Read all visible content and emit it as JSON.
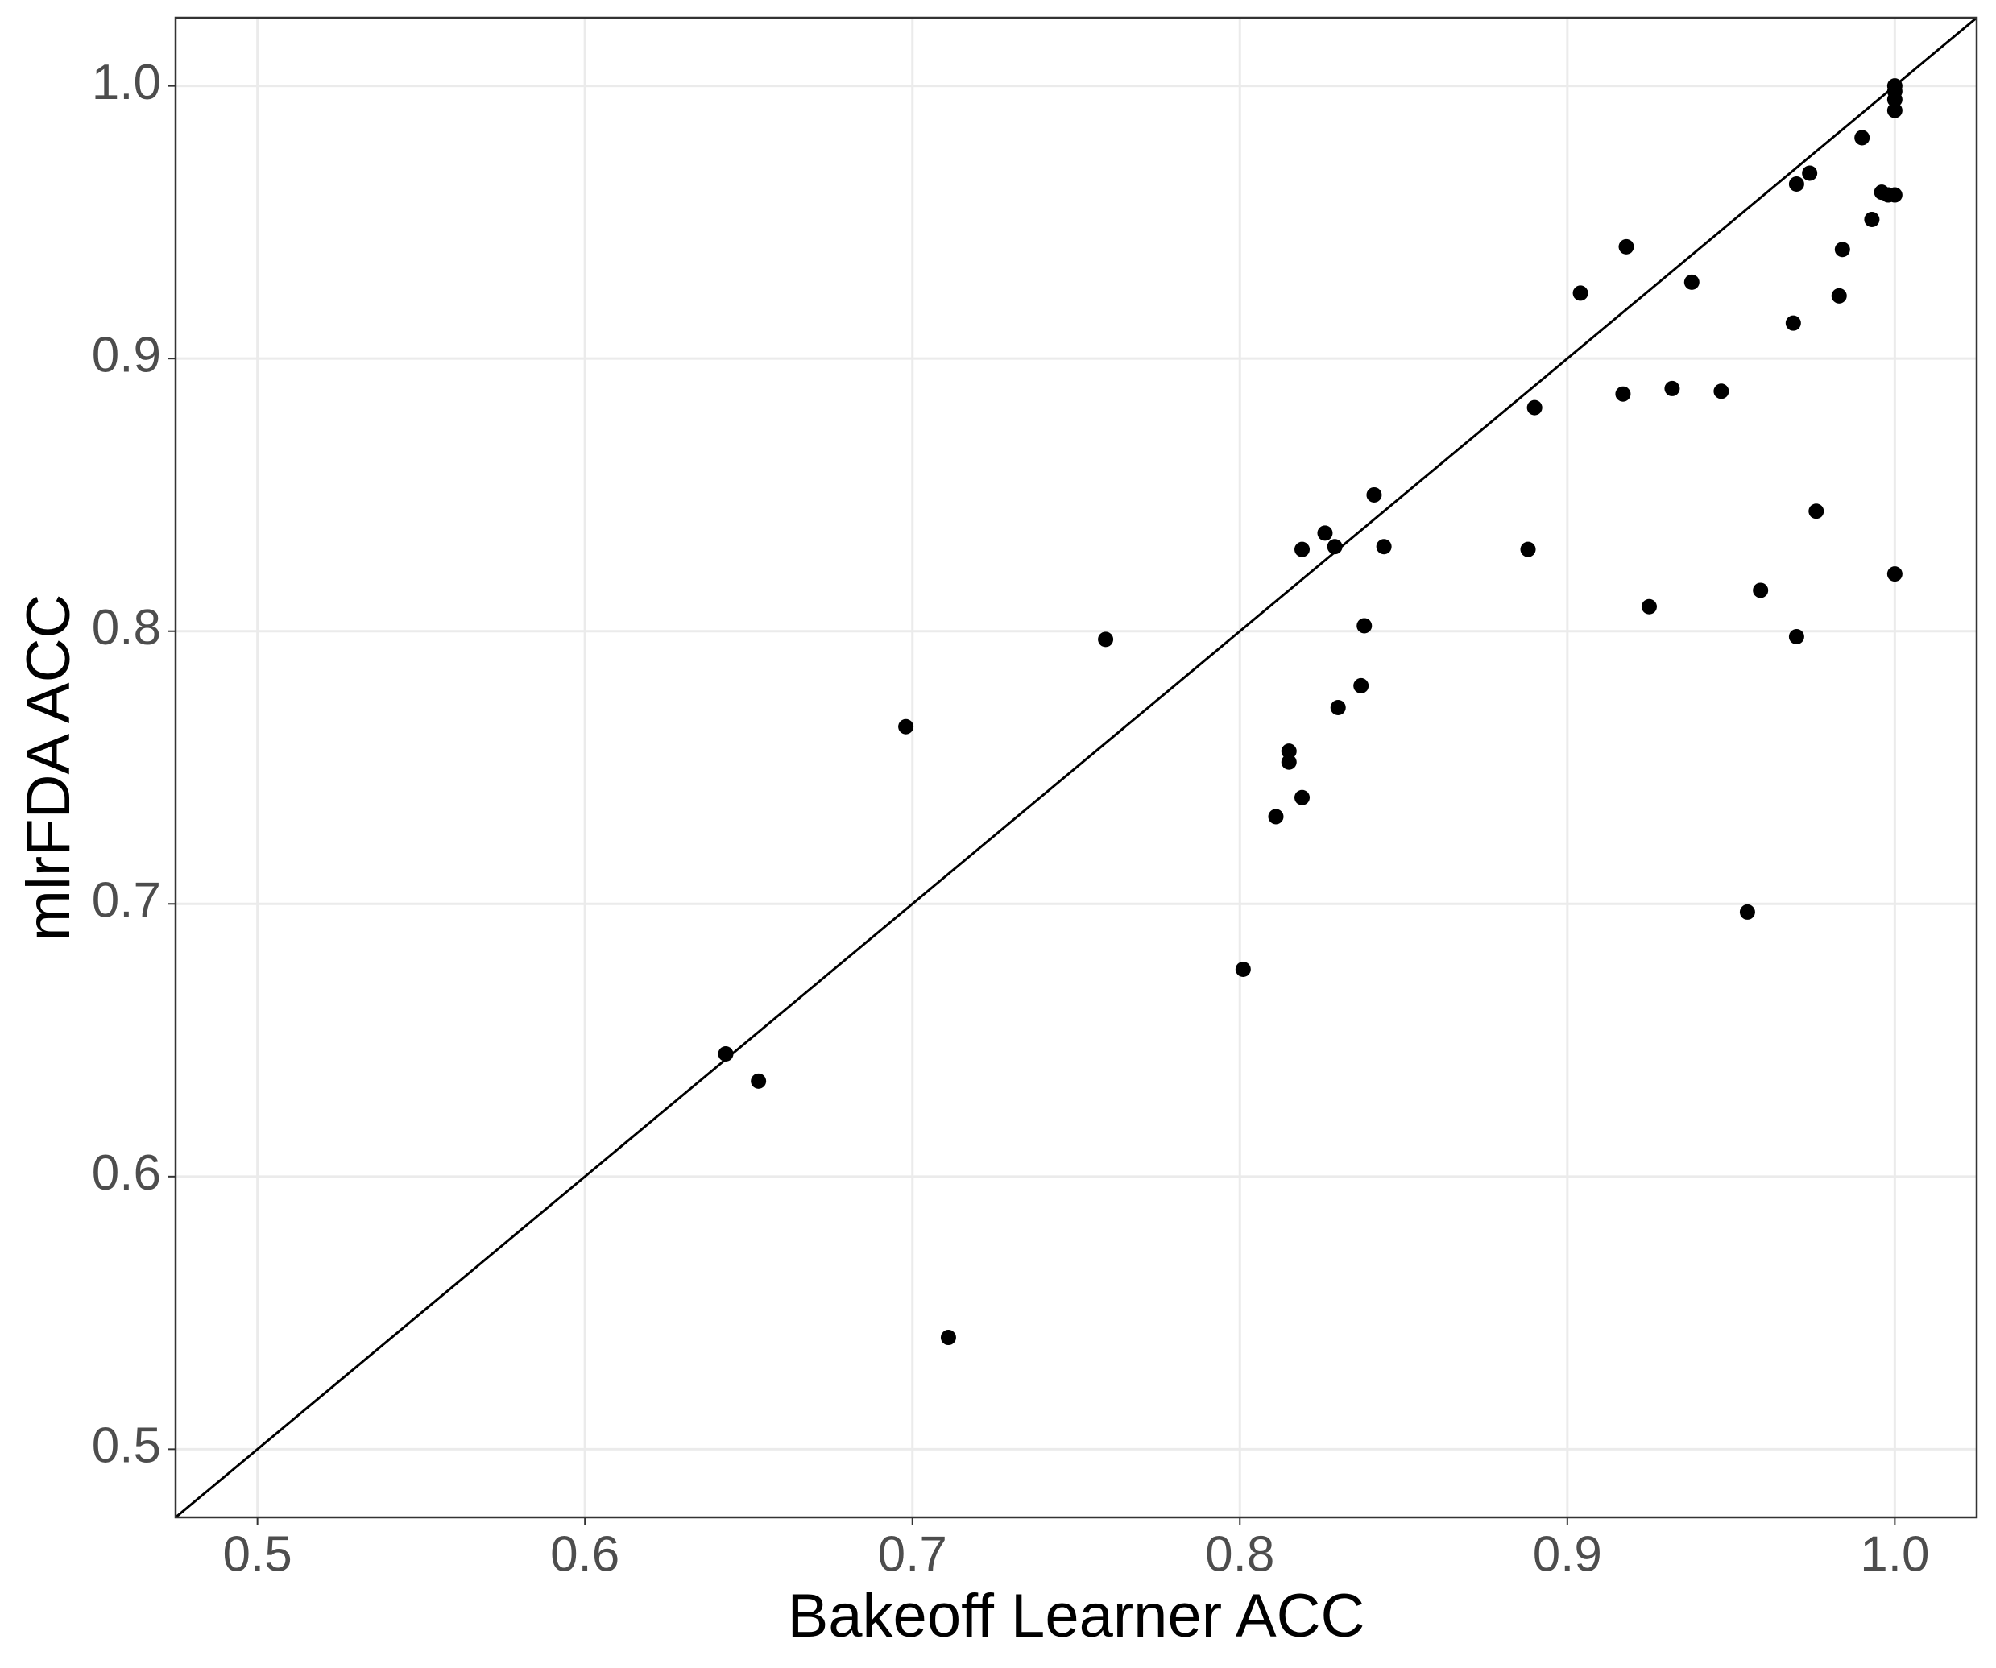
{
  "chart_data": {
    "type": "scatter",
    "x_label": "Bakeoff Learner ACC",
    "y_label": "mlrFDA ACC",
    "x": [
      1.0,
      1.0,
      1.0,
      1.0,
      0.99,
      0.974,
      0.97,
      0.996,
      0.998,
      1.0,
      0.993,
      0.918,
      0.984,
      0.938,
      0.904,
      0.983,
      0.969,
      0.89,
      0.917,
      0.932,
      0.947,
      0.841,
      0.976,
      0.826,
      0.844,
      0.819,
      0.829,
      0.888,
      1.0,
      0.959,
      0.925,
      0.759,
      0.838,
      0.97,
      0.837,
      0.83,
      0.698,
      0.815,
      0.815,
      0.819,
      0.811,
      0.955,
      0.801,
      0.643,
      0.653,
      0.711
    ],
    "values": [
      1.0,
      0.998,
      0.995,
      0.991,
      0.981,
      0.968,
      0.964,
      0.961,
      0.96,
      0.96,
      0.951,
      0.941,
      0.94,
      0.928,
      0.924,
      0.923,
      0.913,
      0.882,
      0.887,
      0.889,
      0.888,
      0.85,
      0.844,
      0.836,
      0.831,
      0.83,
      0.831,
      0.83,
      0.821,
      0.815,
      0.809,
      0.797,
      0.802,
      0.798,
      0.78,
      0.772,
      0.765,
      0.756,
      0.752,
      0.739,
      0.732,
      0.697,
      0.676,
      0.645,
      0.635,
      0.541
    ],
    "color": "#000000",
    "xlim": [
      0.475,
      1.025
    ],
    "ylim": [
      0.475,
      1.025
    ],
    "xticks": [
      {
        "value": 0.5,
        "label": "0.5"
      },
      {
        "value": 0.6,
        "label": "0.6"
      },
      {
        "value": 0.7,
        "label": "0.7"
      },
      {
        "value": 0.8,
        "label": "0.8"
      },
      {
        "value": 0.9,
        "label": "0.9"
      },
      {
        "value": 1.0,
        "label": "1.0"
      }
    ],
    "yticks": [
      {
        "value": 0.5,
        "label": "0.5"
      },
      {
        "value": 0.6,
        "label": "0.6"
      },
      {
        "value": 0.7,
        "label": "0.7"
      },
      {
        "value": 0.8,
        "label": "0.8"
      },
      {
        "value": 0.9,
        "label": "0.9"
      },
      {
        "value": 1.0,
        "label": "1.0"
      }
    ],
    "grid": true,
    "identity_line": true
  }
}
